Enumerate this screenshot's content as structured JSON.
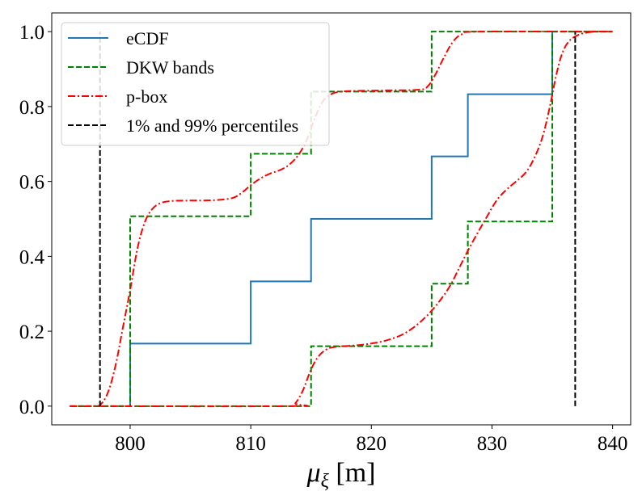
{
  "chart_data": {
    "type": "line",
    "title": "",
    "xlabel_main": "μ",
    "xlabel_sub": "ξ",
    "xlabel_unit": " [m]",
    "ylabel": "",
    "xlim": [
      793.5,
      841.5
    ],
    "ylim": [
      -0.05,
      1.05
    ],
    "xticks": [
      800,
      810,
      820,
      830,
      840
    ],
    "yticks": [
      0.0,
      0.2,
      0.4,
      0.6,
      0.8,
      1.0
    ],
    "xtick_labels": [
      "800",
      "810",
      "820",
      "830",
      "840"
    ],
    "ytick_labels": [
      "0.0",
      "0.2",
      "0.4",
      "0.6",
      "0.8",
      "1.0"
    ],
    "grid": false,
    "legend_position": "top-left",
    "series": [
      {
        "name": "eCDF",
        "style": "solid",
        "color": "#1f77b4",
        "kind": "step",
        "points": [
          [
            800,
            0.0
          ],
          [
            800,
            0.167
          ],
          [
            810,
            0.167
          ],
          [
            810,
            0.333
          ],
          [
            815,
            0.333
          ],
          [
            815,
            0.5
          ],
          [
            825,
            0.5
          ],
          [
            825,
            0.667
          ],
          [
            828,
            0.667
          ],
          [
            828,
            0.833
          ],
          [
            835,
            0.833
          ],
          [
            835,
            1.0
          ]
        ]
      },
      {
        "name": "DKW bands",
        "style": "dashed",
        "color": "#008000",
        "kind": "step",
        "segments": [
          [
            [
              795,
              0.0
            ],
            [
              800,
              0.0
            ],
            [
              800,
              0.507
            ],
            [
              810,
              0.507
            ],
            [
              810,
              0.674
            ],
            [
              815,
              0.674
            ],
            [
              815,
              0.84
            ],
            [
              825,
              0.84
            ],
            [
              825,
              1.0
            ],
            [
              840,
              1.0
            ]
          ],
          [
            [
              795,
              0.0
            ],
            [
              815,
              0.0
            ],
            [
              815,
              0.16
            ],
            [
              825,
              0.16
            ],
            [
              825,
              0.327
            ],
            [
              828,
              0.327
            ],
            [
              828,
              0.493
            ],
            [
              835,
              0.493
            ],
            [
              835,
              1.0
            ],
            [
              840,
              1.0
            ]
          ]
        ]
      },
      {
        "name": "p-box",
        "style": "dashdot",
        "color": "#ff0000",
        "kind": "smooth",
        "segments": [
          [
            [
              795,
              0.0
            ],
            [
              797,
              0.0
            ],
            [
              797.6,
              0.006
            ],
            [
              798.2,
              0.04
            ],
            [
              798.8,
              0.11
            ],
            [
              799.4,
              0.21
            ],
            [
              800,
              0.31
            ],
            [
              800.6,
              0.42
            ],
            [
              801.2,
              0.49
            ],
            [
              801.8,
              0.525
            ],
            [
              802.5,
              0.542
            ],
            [
              803.5,
              0.548
            ],
            [
              805,
              0.549
            ],
            [
              807,
              0.55
            ],
            [
              808.5,
              0.556
            ],
            [
              809.3,
              0.571
            ],
            [
              810,
              0.59
            ],
            [
              810.8,
              0.608
            ],
            [
              811.6,
              0.621
            ],
            [
              812.4,
              0.63
            ],
            [
              813.2,
              0.645
            ],
            [
              814,
              0.673
            ],
            [
              814.7,
              0.715
            ],
            [
              815.3,
              0.768
            ],
            [
              816,
              0.815
            ],
            [
              816.8,
              0.835
            ],
            [
              818,
              0.841
            ],
            [
              821,
              0.843
            ],
            [
              824,
              0.845
            ],
            [
              824.7,
              0.855
            ],
            [
              825.3,
              0.885
            ],
            [
              826,
              0.93
            ],
            [
              826.7,
              0.97
            ],
            [
              827.5,
              0.993
            ],
            [
              829,
              1.0
            ],
            [
              840,
              1.0
            ]
          ],
          [
            [
              795,
              0.0
            ],
            [
              813.2,
              0.0
            ],
            [
              813.7,
              0.008
            ],
            [
              814.3,
              0.04
            ],
            [
              814.9,
              0.09
            ],
            [
              815.5,
              0.128
            ],
            [
              816.2,
              0.15
            ],
            [
              817,
              0.158
            ],
            [
              819,
              0.163
            ],
            [
              820.5,
              0.17
            ],
            [
              821.5,
              0.178
            ],
            [
              822.5,
              0.19
            ],
            [
              823.5,
              0.21
            ],
            [
              824.5,
              0.238
            ],
            [
              825.5,
              0.274
            ],
            [
              826.5,
              0.32
            ],
            [
              827.3,
              0.37
            ],
            [
              828,
              0.415
            ],
            [
              828.8,
              0.462
            ],
            [
              829.6,
              0.507
            ],
            [
              830.4,
              0.55
            ],
            [
              831.2,
              0.578
            ],
            [
              832,
              0.6
            ],
            [
              832.8,
              0.624
            ],
            [
              833.5,
              0.662
            ],
            [
              834.2,
              0.72
            ],
            [
              834.8,
              0.8
            ],
            [
              835.3,
              0.88
            ],
            [
              835.8,
              0.94
            ],
            [
              836.4,
              0.975
            ],
            [
              837.3,
              0.993
            ],
            [
              838.5,
              1.0
            ],
            [
              840,
              1.0
            ]
          ]
        ]
      },
      {
        "name": "1% and 99% percentiles",
        "style": "dashed",
        "color": "#000000",
        "kind": "vlines",
        "x": [
          797.5,
          836.9
        ],
        "ymin": 0.0,
        "ymax": 1.0
      }
    ]
  }
}
